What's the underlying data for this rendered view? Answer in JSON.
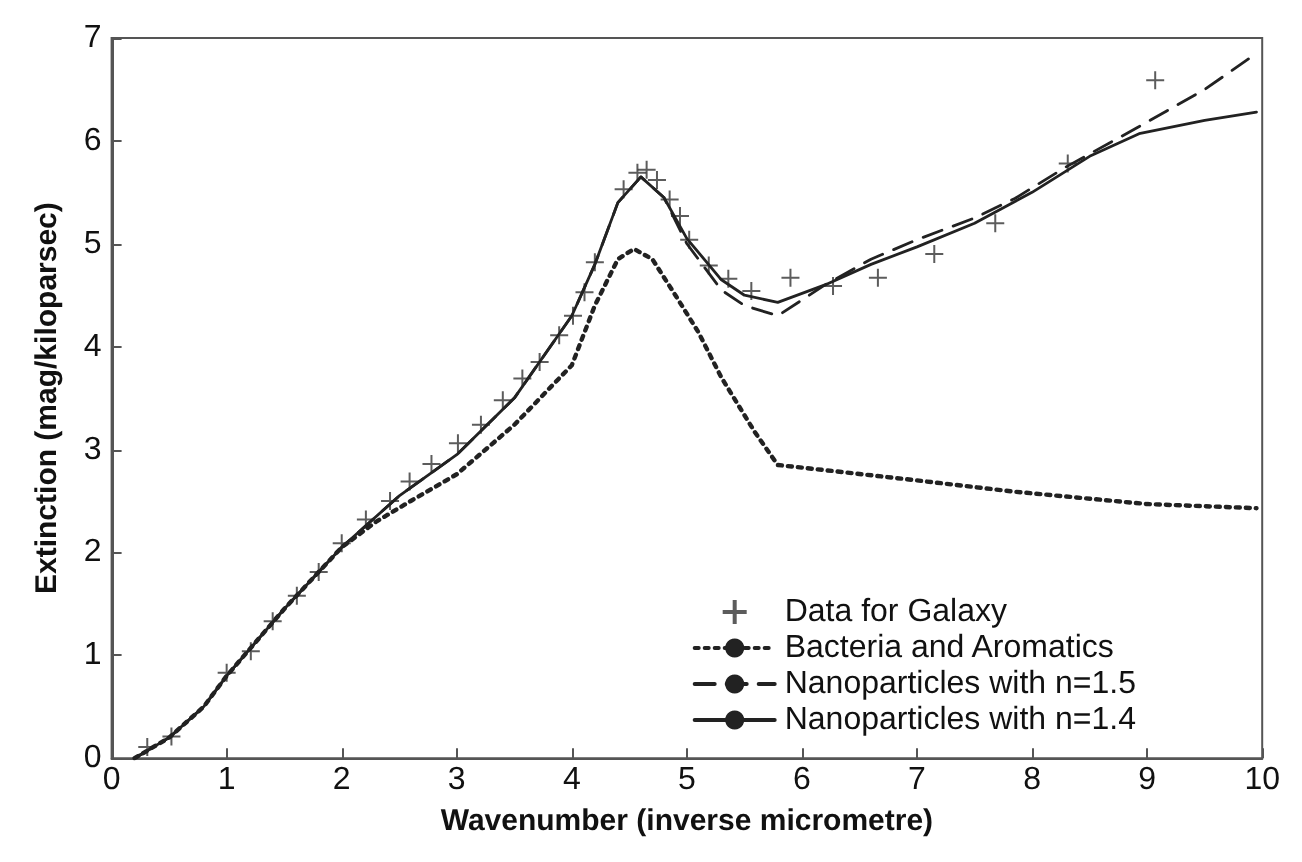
{
  "chart_data": {
    "type": "line",
    "xlabel": "Wavenumber (inverse micrometre)",
    "ylabel": "Extinction (mag/kiloparsec)",
    "xlim": [
      0,
      10
    ],
    "xticks": [
      0,
      1,
      2,
      3,
      4,
      5,
      6,
      7,
      8,
      9,
      10
    ],
    "ylim": [
      0,
      7
    ],
    "yticks": [
      0,
      1,
      2,
      3,
      4,
      5,
      6,
      7
    ],
    "grid": false,
    "legend": "bottom right",
    "series": [
      {
        "name": "Data for Galaxy",
        "type": "scatter",
        "marker": "cross",
        "color": "#333333",
        "x": [
          0.31,
          0.52,
          1.0,
          1.21,
          1.4,
          1.61,
          1.8,
          2.0,
          2.21,
          2.42,
          2.59,
          2.78,
          3.01,
          3.21,
          3.4,
          3.57,
          3.72,
          3.89,
          4.01,
          4.11,
          4.2,
          4.45,
          4.57,
          4.65,
          4.74,
          4.85,
          4.94,
          5.02,
          5.19,
          5.36,
          5.56,
          5.9,
          6.27,
          6.66,
          7.15,
          7.68,
          8.31,
          9.07
        ],
        "values": [
          0.11,
          0.21,
          0.83,
          1.04,
          1.33,
          1.58,
          1.81,
          2.09,
          2.32,
          2.5,
          2.69,
          2.86,
          3.06,
          3.24,
          3.48,
          3.69,
          3.85,
          4.11,
          4.3,
          4.53,
          4.82,
          5.53,
          5.69,
          5.72,
          5.62,
          5.43,
          5.27,
          5.04,
          4.79,
          4.66,
          4.54,
          4.67,
          4.59,
          4.67,
          4.9,
          5.2,
          5.78,
          6.59
        ]
      },
      {
        "name": "Bacteria and Aromatics",
        "line_style": "dotted",
        "marker": "none",
        "color": "#222222",
        "x": [
          0.2,
          0.5,
          0.8,
          1.0,
          1.5,
          2.0,
          2.3,
          2.6,
          3.0,
          3.5,
          4.0,
          4.2,
          4.4,
          4.54,
          4.7,
          4.9,
          5.1,
          5.3,
          5.59,
          5.79,
          6.44,
          7.0,
          7.85,
          9.0,
          9.95
        ],
        "values": [
          0.0,
          0.2,
          0.5,
          0.8,
          1.45,
          2.05,
          2.3,
          2.5,
          2.76,
          3.24,
          3.82,
          4.4,
          4.85,
          4.95,
          4.85,
          4.5,
          4.14,
          3.7,
          3.17,
          2.85,
          2.77,
          2.7,
          2.59,
          2.47,
          2.43
        ]
      },
      {
        "name": "Nanoparticles with n=1.5",
        "line_style": "dashed",
        "marker": "none",
        "color": "#222222",
        "x": [
          0.2,
          0.5,
          0.8,
          1.0,
          1.5,
          2.0,
          2.5,
          3.0,
          3.5,
          4.0,
          4.2,
          4.4,
          4.6,
          4.8,
          5.0,
          5.3,
          5.5,
          5.79,
          6.2,
          6.6,
          7.0,
          7.5,
          7.85,
          8.3,
          8.9,
          9.5,
          9.95
        ],
        "values": [
          0.0,
          0.2,
          0.5,
          0.8,
          1.45,
          2.05,
          2.55,
          2.95,
          3.5,
          4.3,
          4.8,
          5.4,
          5.65,
          5.45,
          5.0,
          4.55,
          4.4,
          4.3,
          4.6,
          4.85,
          5.04,
          5.25,
          5.44,
          5.75,
          6.12,
          6.5,
          6.85
        ]
      },
      {
        "name": "Nanoparticles with n=1.4",
        "line_style": "solid",
        "marker": "none",
        "color": "#222222",
        "x": [
          0.2,
          0.5,
          0.8,
          1.0,
          1.5,
          2.0,
          2.5,
          3.0,
          3.5,
          4.0,
          4.2,
          4.4,
          4.6,
          4.8,
          5.0,
          5.3,
          5.5,
          5.79,
          6.2,
          6.6,
          7.0,
          7.5,
          8.0,
          8.5,
          8.93,
          9.5,
          9.95
        ],
        "values": [
          0.0,
          0.2,
          0.5,
          0.8,
          1.45,
          2.05,
          2.55,
          2.95,
          3.5,
          4.3,
          4.8,
          5.4,
          5.65,
          5.45,
          5.05,
          4.65,
          4.5,
          4.43,
          4.6,
          4.8,
          4.97,
          5.2,
          5.5,
          5.85,
          6.07,
          6.2,
          6.28
        ]
      }
    ]
  }
}
